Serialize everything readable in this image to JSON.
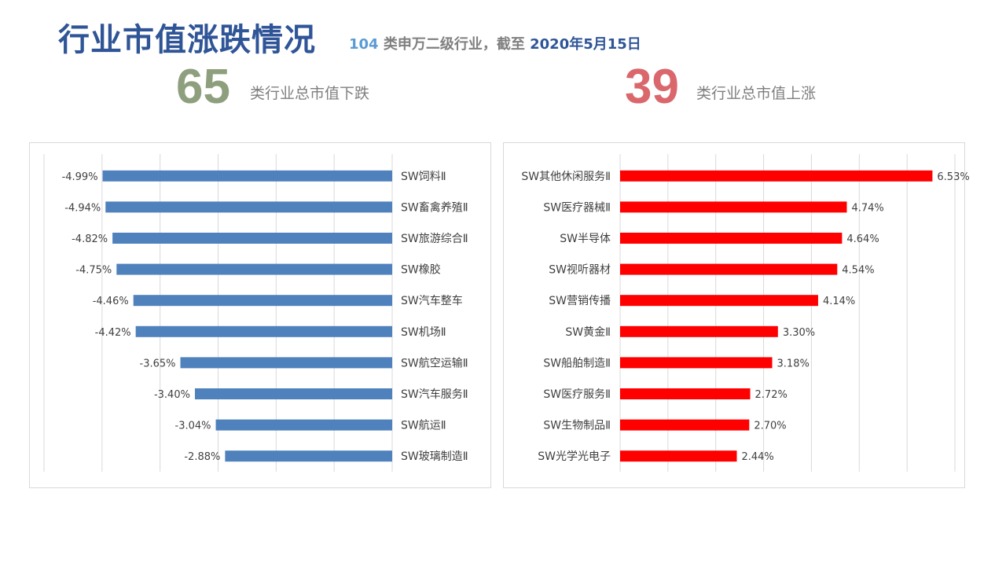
{
  "header": {
    "title": "行业市值涨跌情况",
    "subtitle_count": "104",
    "subtitle_text": " 类申万二级行业，截至 ",
    "subtitle_date": "2020年5月15日"
  },
  "summary": {
    "down_count": "65",
    "down_label": "类行业总市值下跌",
    "down_color": "#8e9f7e",
    "up_count": "39",
    "up_label": "类行业总市值上涨",
    "up_color": "#d9676b"
  },
  "chart_data": [
    {
      "type": "bar",
      "orientation": "horizontal",
      "categories": [
        "SW饲料Ⅱ",
        "SW畜禽养殖Ⅱ",
        "SW旅游综合Ⅱ",
        "SW橡胶",
        "SW汽车整车",
        "SW机场Ⅱ",
        "SW航空运输Ⅱ",
        "SW汽车服务Ⅱ",
        "SW航运Ⅱ",
        "SW玻璃制造Ⅱ"
      ],
      "values": [
        -4.99,
        -4.94,
        -4.82,
        -4.75,
        -4.46,
        -4.42,
        -3.65,
        -3.4,
        -3.04,
        -2.88
      ],
      "data_labels": [
        "-4.99%",
        "-4.94%",
        "-4.82%",
        "-4.75%",
        "-4.46%",
        "-4.42%",
        "-3.65%",
        "-3.40%",
        "-3.04%",
        "-2.88%"
      ],
      "xlim": [
        -6,
        0
      ],
      "grid": true,
      "bar_color": "#4f81bd"
    },
    {
      "type": "bar",
      "orientation": "horizontal",
      "categories": [
        "SW其他休闲服务Ⅱ",
        "SW医疗器械Ⅱ",
        "SW半导体",
        "SW视听器材",
        "SW营销传播",
        "SW黄金Ⅱ",
        "SW船舶制造Ⅱ",
        "SW医疗服务Ⅱ",
        "SW生物制品Ⅱ",
        "SW光学光电子"
      ],
      "values": [
        6.53,
        4.74,
        4.64,
        4.54,
        4.14,
        3.3,
        3.18,
        2.72,
        2.7,
        2.44
      ],
      "data_labels": [
        "6.53%",
        "4.74%",
        "4.64%",
        "4.54%",
        "4.14%",
        "3.30%",
        "3.18%",
        "2.72%",
        "2.70%",
        "2.44%"
      ],
      "xlim": [
        0,
        7
      ],
      "grid": true,
      "bar_color": "#ff0000"
    }
  ]
}
